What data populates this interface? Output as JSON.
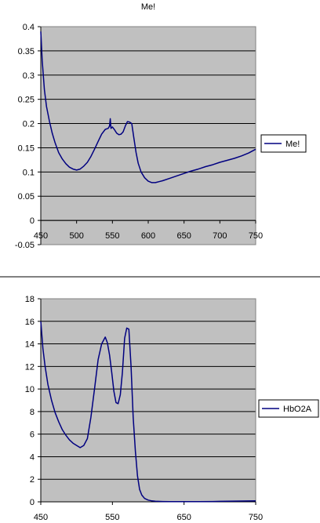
{
  "chart_data": [
    {
      "type": "line",
      "title": "Me!",
      "xlabel": "",
      "ylabel": "",
      "xlim": [
        450,
        750
      ],
      "ylim": [
        -0.05,
        0.4
      ],
      "xticks": [
        450,
        500,
        550,
        600,
        650,
        700,
        750
      ],
      "yticks": [
        -0.05,
        0,
        0.05,
        0.1,
        0.15,
        0.2,
        0.25,
        0.3,
        0.35,
        0.4
      ],
      "xtick_labels": [
        "450",
        "500",
        "550",
        "600",
        "650",
        "700",
        "750"
      ],
      "ytick_labels": [
        "-0.05",
        "0",
        "0.05",
        "0.1",
        "0.15",
        "0.2",
        "0.25",
        "0.3",
        "0.35",
        "0.4"
      ],
      "grid": true,
      "legend_position": "right",
      "series": [
        {
          "name": "Me!",
          "color": "#000080",
          "x": [
            450,
            452,
            455,
            458,
            462,
            466,
            470,
            475,
            480,
            485,
            490,
            495,
            500,
            505,
            510,
            515,
            520,
            525,
            530,
            535,
            540,
            544,
            546,
            547,
            548,
            550,
            553,
            556,
            559,
            562,
            565,
            568,
            571,
            574,
            577,
            580,
            583,
            586,
            590,
            595,
            600,
            605,
            610,
            615,
            620,
            630,
            640,
            650,
            660,
            670,
            680,
            690,
            700,
            710,
            720,
            730,
            740,
            750
          ],
          "y": [
            0.39,
            0.33,
            0.27,
            0.235,
            0.205,
            0.18,
            0.16,
            0.14,
            0.127,
            0.117,
            0.11,
            0.106,
            0.104,
            0.106,
            0.112,
            0.12,
            0.132,
            0.147,
            0.163,
            0.178,
            0.188,
            0.19,
            0.195,
            0.21,
            0.19,
            0.193,
            0.187,
            0.18,
            0.177,
            0.178,
            0.183,
            0.195,
            0.204,
            0.203,
            0.2,
            0.17,
            0.14,
            0.118,
            0.1,
            0.088,
            0.081,
            0.078,
            0.078,
            0.08,
            0.082,
            0.087,
            0.092,
            0.097,
            0.102,
            0.106,
            0.111,
            0.115,
            0.12,
            0.124,
            0.128,
            0.133,
            0.139,
            0.147
          ]
        }
      ]
    },
    {
      "type": "line",
      "title": "",
      "xlabel": "",
      "ylabel": "",
      "xlim": [
        450,
        750
      ],
      "ylim": [
        0,
        18
      ],
      "xticks": [
        450,
        550,
        650,
        750
      ],
      "yticks": [
        0,
        2,
        4,
        6,
        8,
        10,
        12,
        14,
        16,
        18
      ],
      "xtick_labels": [
        "450",
        "550",
        "650",
        "750"
      ],
      "ytick_labels": [
        "0",
        "2",
        "4",
        "6",
        "8",
        "10",
        "12",
        "14",
        "16",
        "18"
      ],
      "grid": true,
      "legend_position": "right",
      "series": [
        {
          "name": "HbO2A",
          "color": "#000080",
          "x": [
            450,
            453,
            456,
            460,
            465,
            470,
            475,
            480,
            485,
            490,
            495,
            500,
            505,
            510,
            515,
            520,
            525,
            530,
            535,
            540,
            543,
            546,
            549,
            552,
            555,
            558,
            561,
            564,
            567,
            570,
            573,
            576,
            579,
            582,
            585,
            588,
            591,
            595,
            600,
            605,
            610,
            620,
            630,
            650,
            670,
            690,
            700,
            720,
            750
          ],
          "y": [
            16,
            13.6,
            12,
            10.4,
            9,
            7.9,
            7.1,
            6.4,
            5.9,
            5.5,
            5.2,
            5,
            4.8,
            5,
            5.6,
            7.5,
            10,
            12.6,
            14,
            14.6,
            14.1,
            13,
            11.5,
            9.8,
            8.8,
            8.7,
            9.5,
            11.5,
            14.5,
            15.4,
            15.3,
            12,
            7.5,
            4.5,
            2.3,
            1.1,
            0.6,
            0.3,
            0.15,
            0.08,
            0.05,
            0.03,
            0.02,
            0.02,
            0.02,
            0.03,
            0.04,
            0.06,
            0.08
          ]
        }
      ]
    }
  ]
}
